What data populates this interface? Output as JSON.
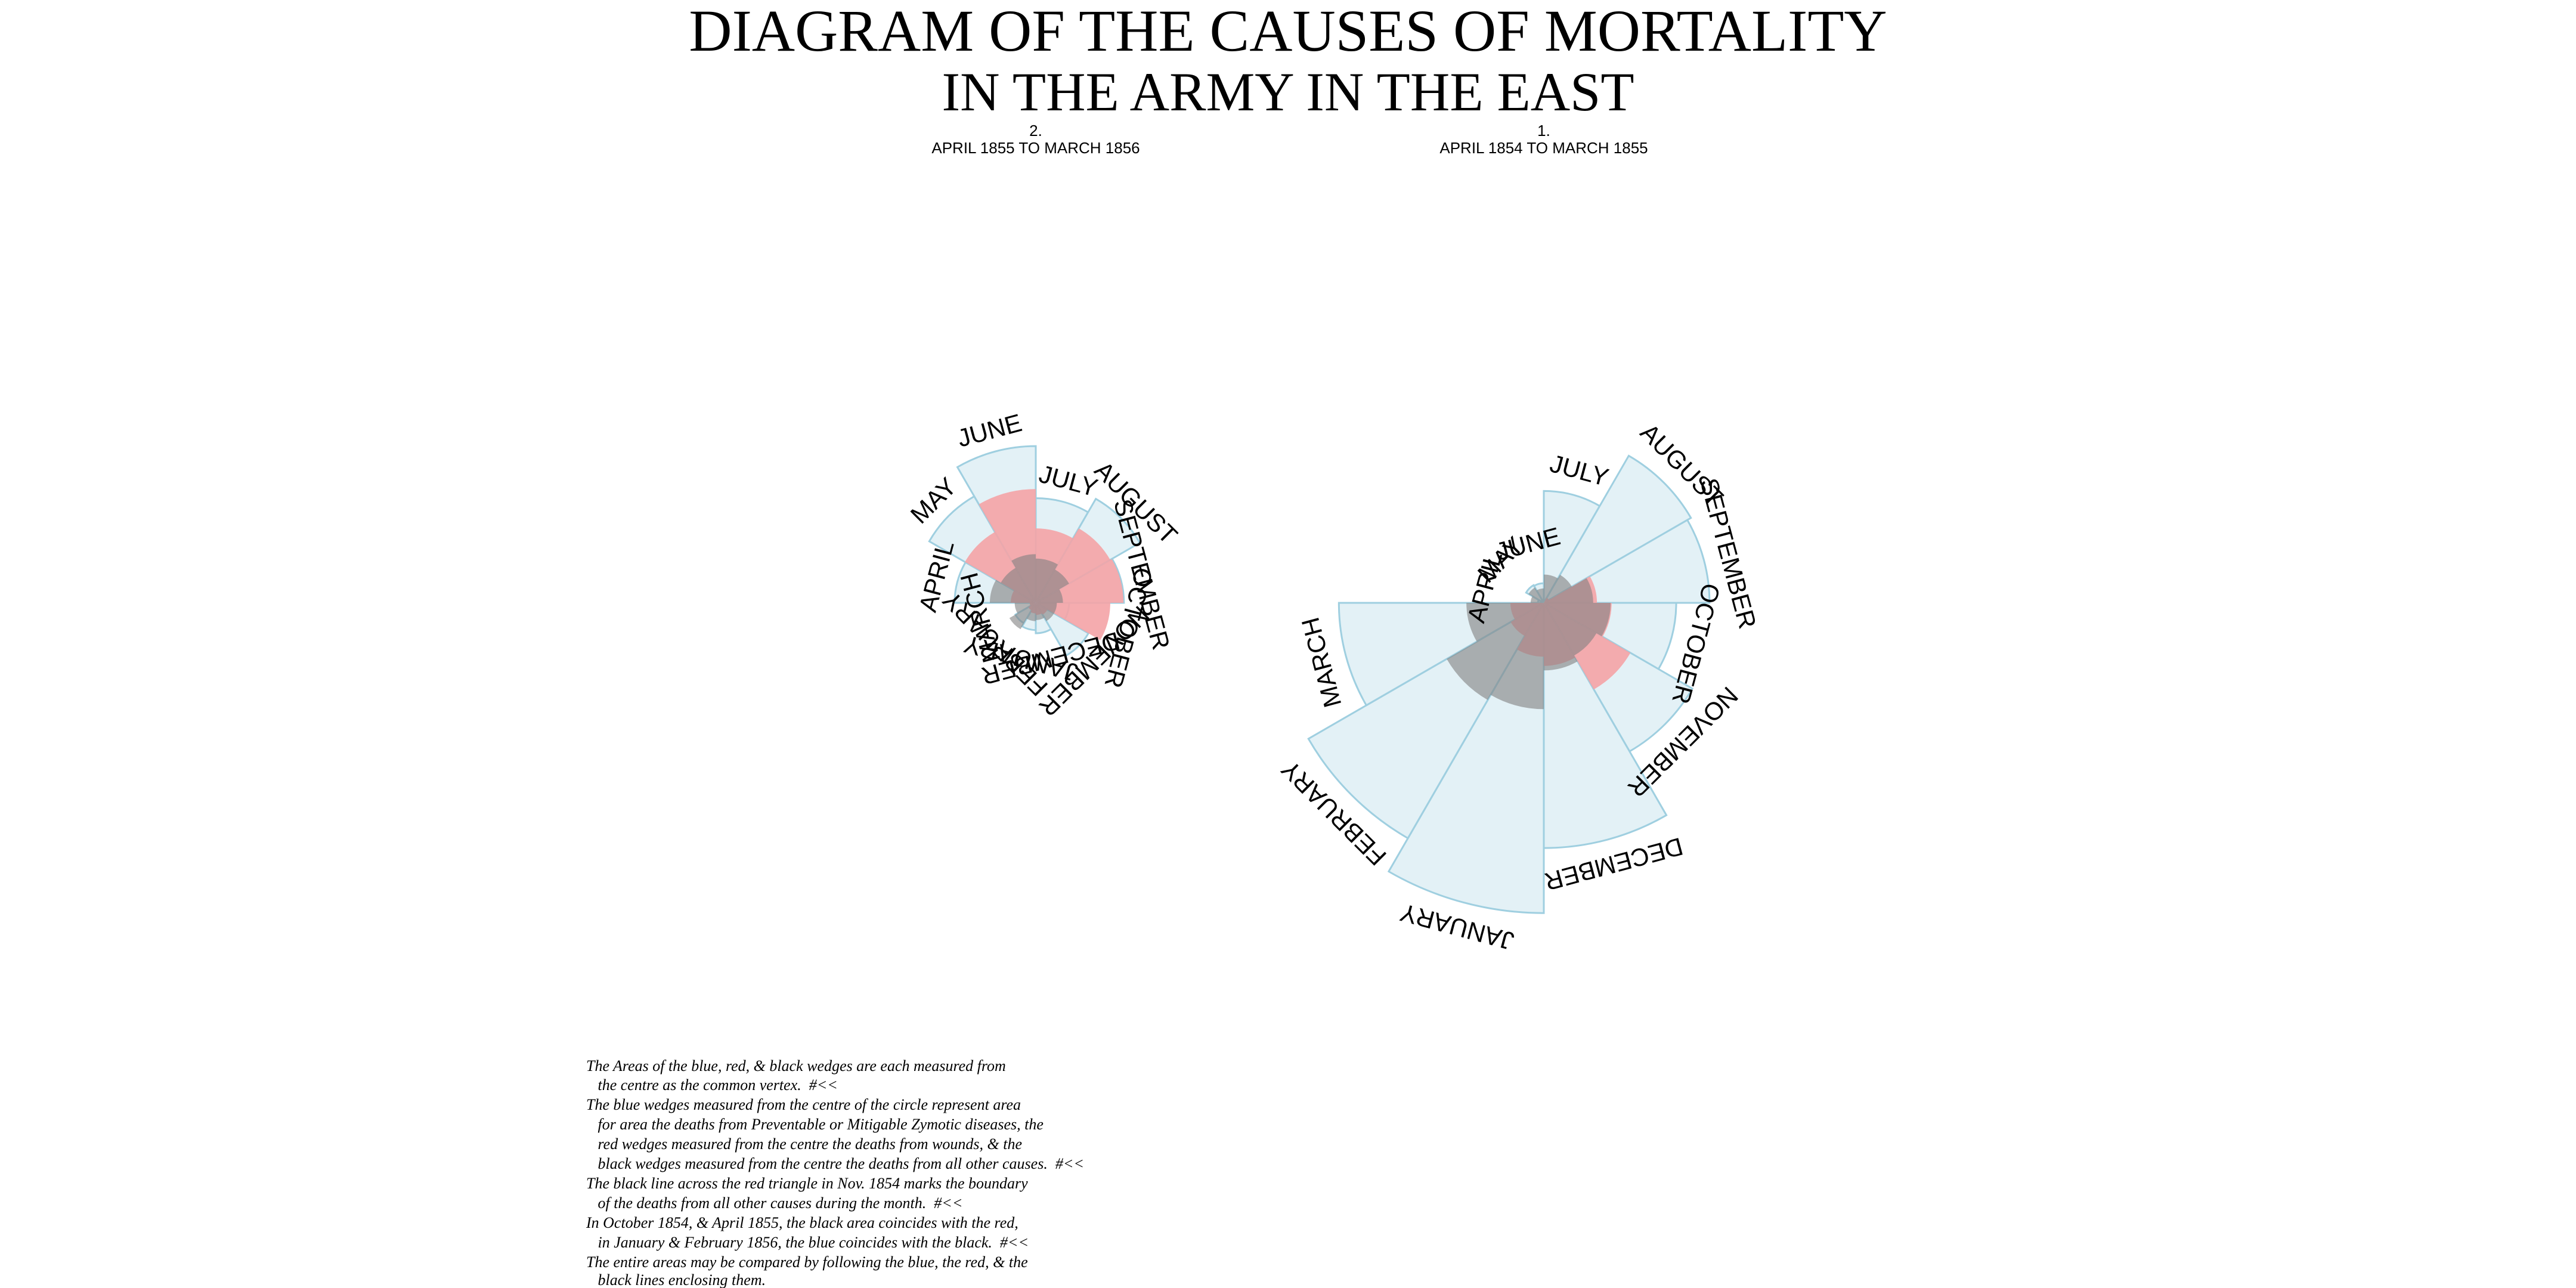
{
  "title": {
    "line1": "DIAGRAM OF THE CAUSES OF MORTALITY",
    "line2": "IN THE ARMY IN THE EAST"
  },
  "colors": {
    "zymotic_fill": "#e3f1f6",
    "zymotic_stroke": "#9fcfe0",
    "wounds_fill": "#f4a3a6",
    "other_fill": "#808080",
    "background": "#ffffff"
  },
  "chart_data": [
    {
      "type": "polar-area",
      "number": "2.",
      "period": "APRIL 1855 TO MARCH 1856",
      "months": [
        "APRIL",
        "MAY",
        "JUNE",
        "JULY",
        "AUGUST",
        "SEPTEMBER",
        "OCTOBER",
        "NOVEMBER",
        "DECEMBER",
        "JANUARY",
        "FEBRUARY",
        "MARCH"
      ],
      "series": [
        {
          "key": "zymotic",
          "values": [
            178,
            409,
            664,
            296,
            390,
            210,
            30,
            100,
            25,
            20,
            15,
            0
          ]
        },
        {
          "key": "wounds",
          "values": [
            17,
            181,
            350,
            150,
            200,
            208,
            150,
            5,
            4,
            3,
            2,
            1
          ]
        },
        {
          "key": "other",
          "values": [
            57,
            44,
            64,
            53,
            40,
            20,
            12,
            12,
            8,
            9,
            25,
            12
          ]
        }
      ]
    },
    {
      "type": "polar-area",
      "number": "1.",
      "period": "APRIL 1854 TO MARCH 1855",
      "months": [
        "APRIL",
        "MAY",
        "JUNE",
        "JULY",
        "AUGUST",
        "SEPTEMBER",
        "OCTOBER",
        "NOVEMBER",
        "DECEMBER",
        "JANUARY",
        "FEBRUARY",
        "MARCH"
      ],
      "series": [
        {
          "key": "zymotic",
          "values": [
            1,
            12,
            11,
            359,
            828,
            788,
            503,
            844,
            1725,
            2761,
            2120,
            1205
          ]
        },
        {
          "key": "wounds",
          "values": [
            0,
            0,
            0,
            0,
            1,
            81,
            132,
            287,
            114,
            83,
            42,
            32
          ]
        },
        {
          "key": "other",
          "values": [
            5,
            9,
            6,
            23,
            30,
            70,
            128,
            106,
            131,
            324,
            361,
            172
          ]
        }
      ]
    }
  ],
  "notes": [
    "The Areas of the blue, red, & black wedges are each measured from",
    "   the centre as the common vertex.  #<<",
    "The blue wedges measured from the centre of the circle represent area",
    "   for area the deaths from Preventable or Mitigable Zymotic diseases, the",
    "   red wedges measured from the centre the deaths from wounds, & the",
    "   black wedges measured from the centre the deaths from all other causes.  #<<",
    "The black line across the red triangle in Nov. 1854 marks the boundary",
    "   of the deaths from all other causes during the month.  #<<",
    "In October 1854, & April 1855, the black area coincides with the red,",
    "   in January & February 1856, the blue coincides with the black.  #<<",
    "The entire areas may be compared by following the blue, the red, & the",
    "   black lines enclosing them."
  ]
}
